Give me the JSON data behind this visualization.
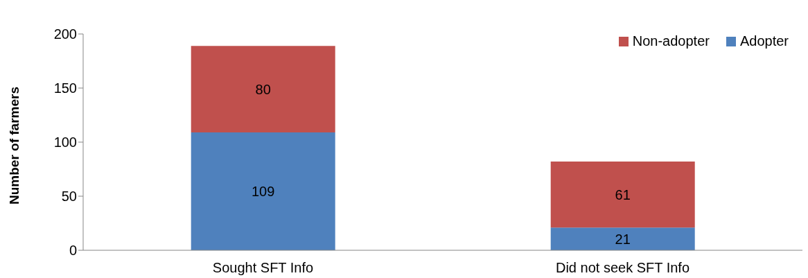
{
  "chart_data": {
    "type": "bar",
    "stacked": true,
    "ylabel": "Number of farmers",
    "categories": [
      "Sought SFT Info",
      "Did not seek SFT Info"
    ],
    "series": [
      {
        "name": "Adopter",
        "color": "#4f81bd",
        "values": [
          109,
          21
        ]
      },
      {
        "name": "Non-adopter",
        "color": "#c0504d",
        "values": [
          80,
          61
        ]
      }
    ],
    "ylim": [
      0,
      200
    ],
    "yticks": [
      0,
      50,
      100,
      150,
      200
    ],
    "data_labels": true,
    "grid": false,
    "legend": "top right"
  }
}
